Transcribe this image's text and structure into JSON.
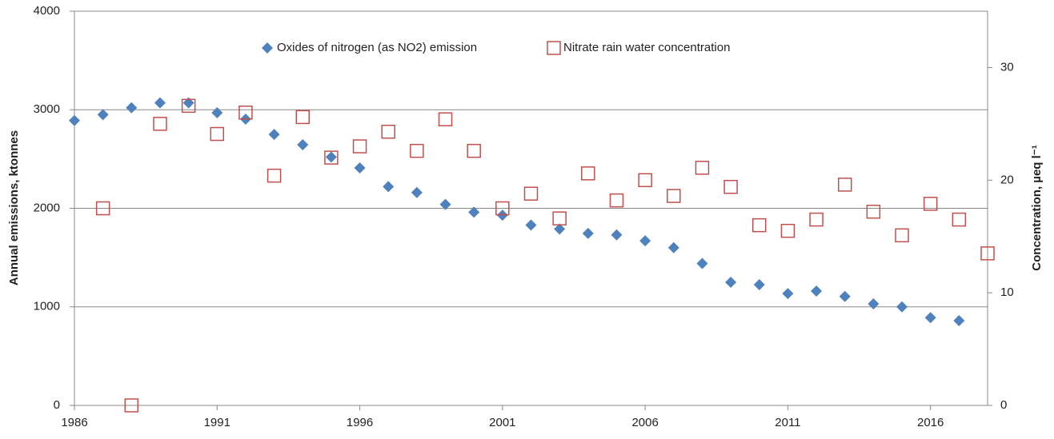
{
  "chart_data": {
    "type": "scatter",
    "x": [
      1986,
      1987,
      1988,
      1989,
      1990,
      1991,
      1992,
      1993,
      1994,
      1995,
      1996,
      1997,
      1998,
      1999,
      2000,
      2001,
      2002,
      2003,
      2004,
      2005,
      2006,
      2007,
      2008,
      2009,
      2010,
      2011,
      2012,
      2013,
      2014,
      2015,
      2016,
      2017,
      2018
    ],
    "series": [
      {
        "name": "Oxides of nitrogen (as NO2) emission",
        "color": "#4f81bd",
        "marker": "diamond",
        "values": [
          2890,
          2950,
          3020,
          3070,
          3070,
          2970,
          2905,
          2750,
          2645,
          2520,
          2410,
          2220,
          2160,
          2040,
          1960,
          1930,
          1830,
          1790,
          1745,
          1730,
          1670,
          1600,
          1440,
          1250,
          1225,
          1135,
          1160,
          1105,
          1030,
          1000,
          890,
          860,
          null
        ]
      },
      {
        "name": "Nitrate rain water concentration",
        "color": "#c0504d",
        "marker": "square",
        "axis": "y2",
        "values": [
          null,
          17.5,
          0,
          25.0,
          26.6,
          24.1,
          26.0,
          20.4,
          25.6,
          22.0,
          23.0,
          24.3,
          22.6,
          25.4,
          22.6,
          17.5,
          18.8,
          16.6,
          20.6,
          18.2,
          20.0,
          18.6,
          21.1,
          19.4,
          16.0,
          15.5,
          16.5,
          19.6,
          17.2,
          15.1,
          17.9,
          16.5,
          13.5
        ]
      }
    ],
    "y_label": "Annual emissions, ktonnes",
    "y2_label": "Concentration, µeq l⁻¹",
    "xlim": [
      1986,
      2018
    ],
    "xticks": [
      1986,
      1991,
      1996,
      2001,
      2006,
      2011,
      2016
    ],
    "ylim": [
      0,
      4000
    ],
    "yticks": [
      0,
      1000,
      2000,
      3000,
      4000
    ],
    "y2lim": [
      0,
      35
    ],
    "y2ticks": [
      0,
      10,
      20,
      30
    ],
    "grid": true,
    "legend": "top"
  }
}
